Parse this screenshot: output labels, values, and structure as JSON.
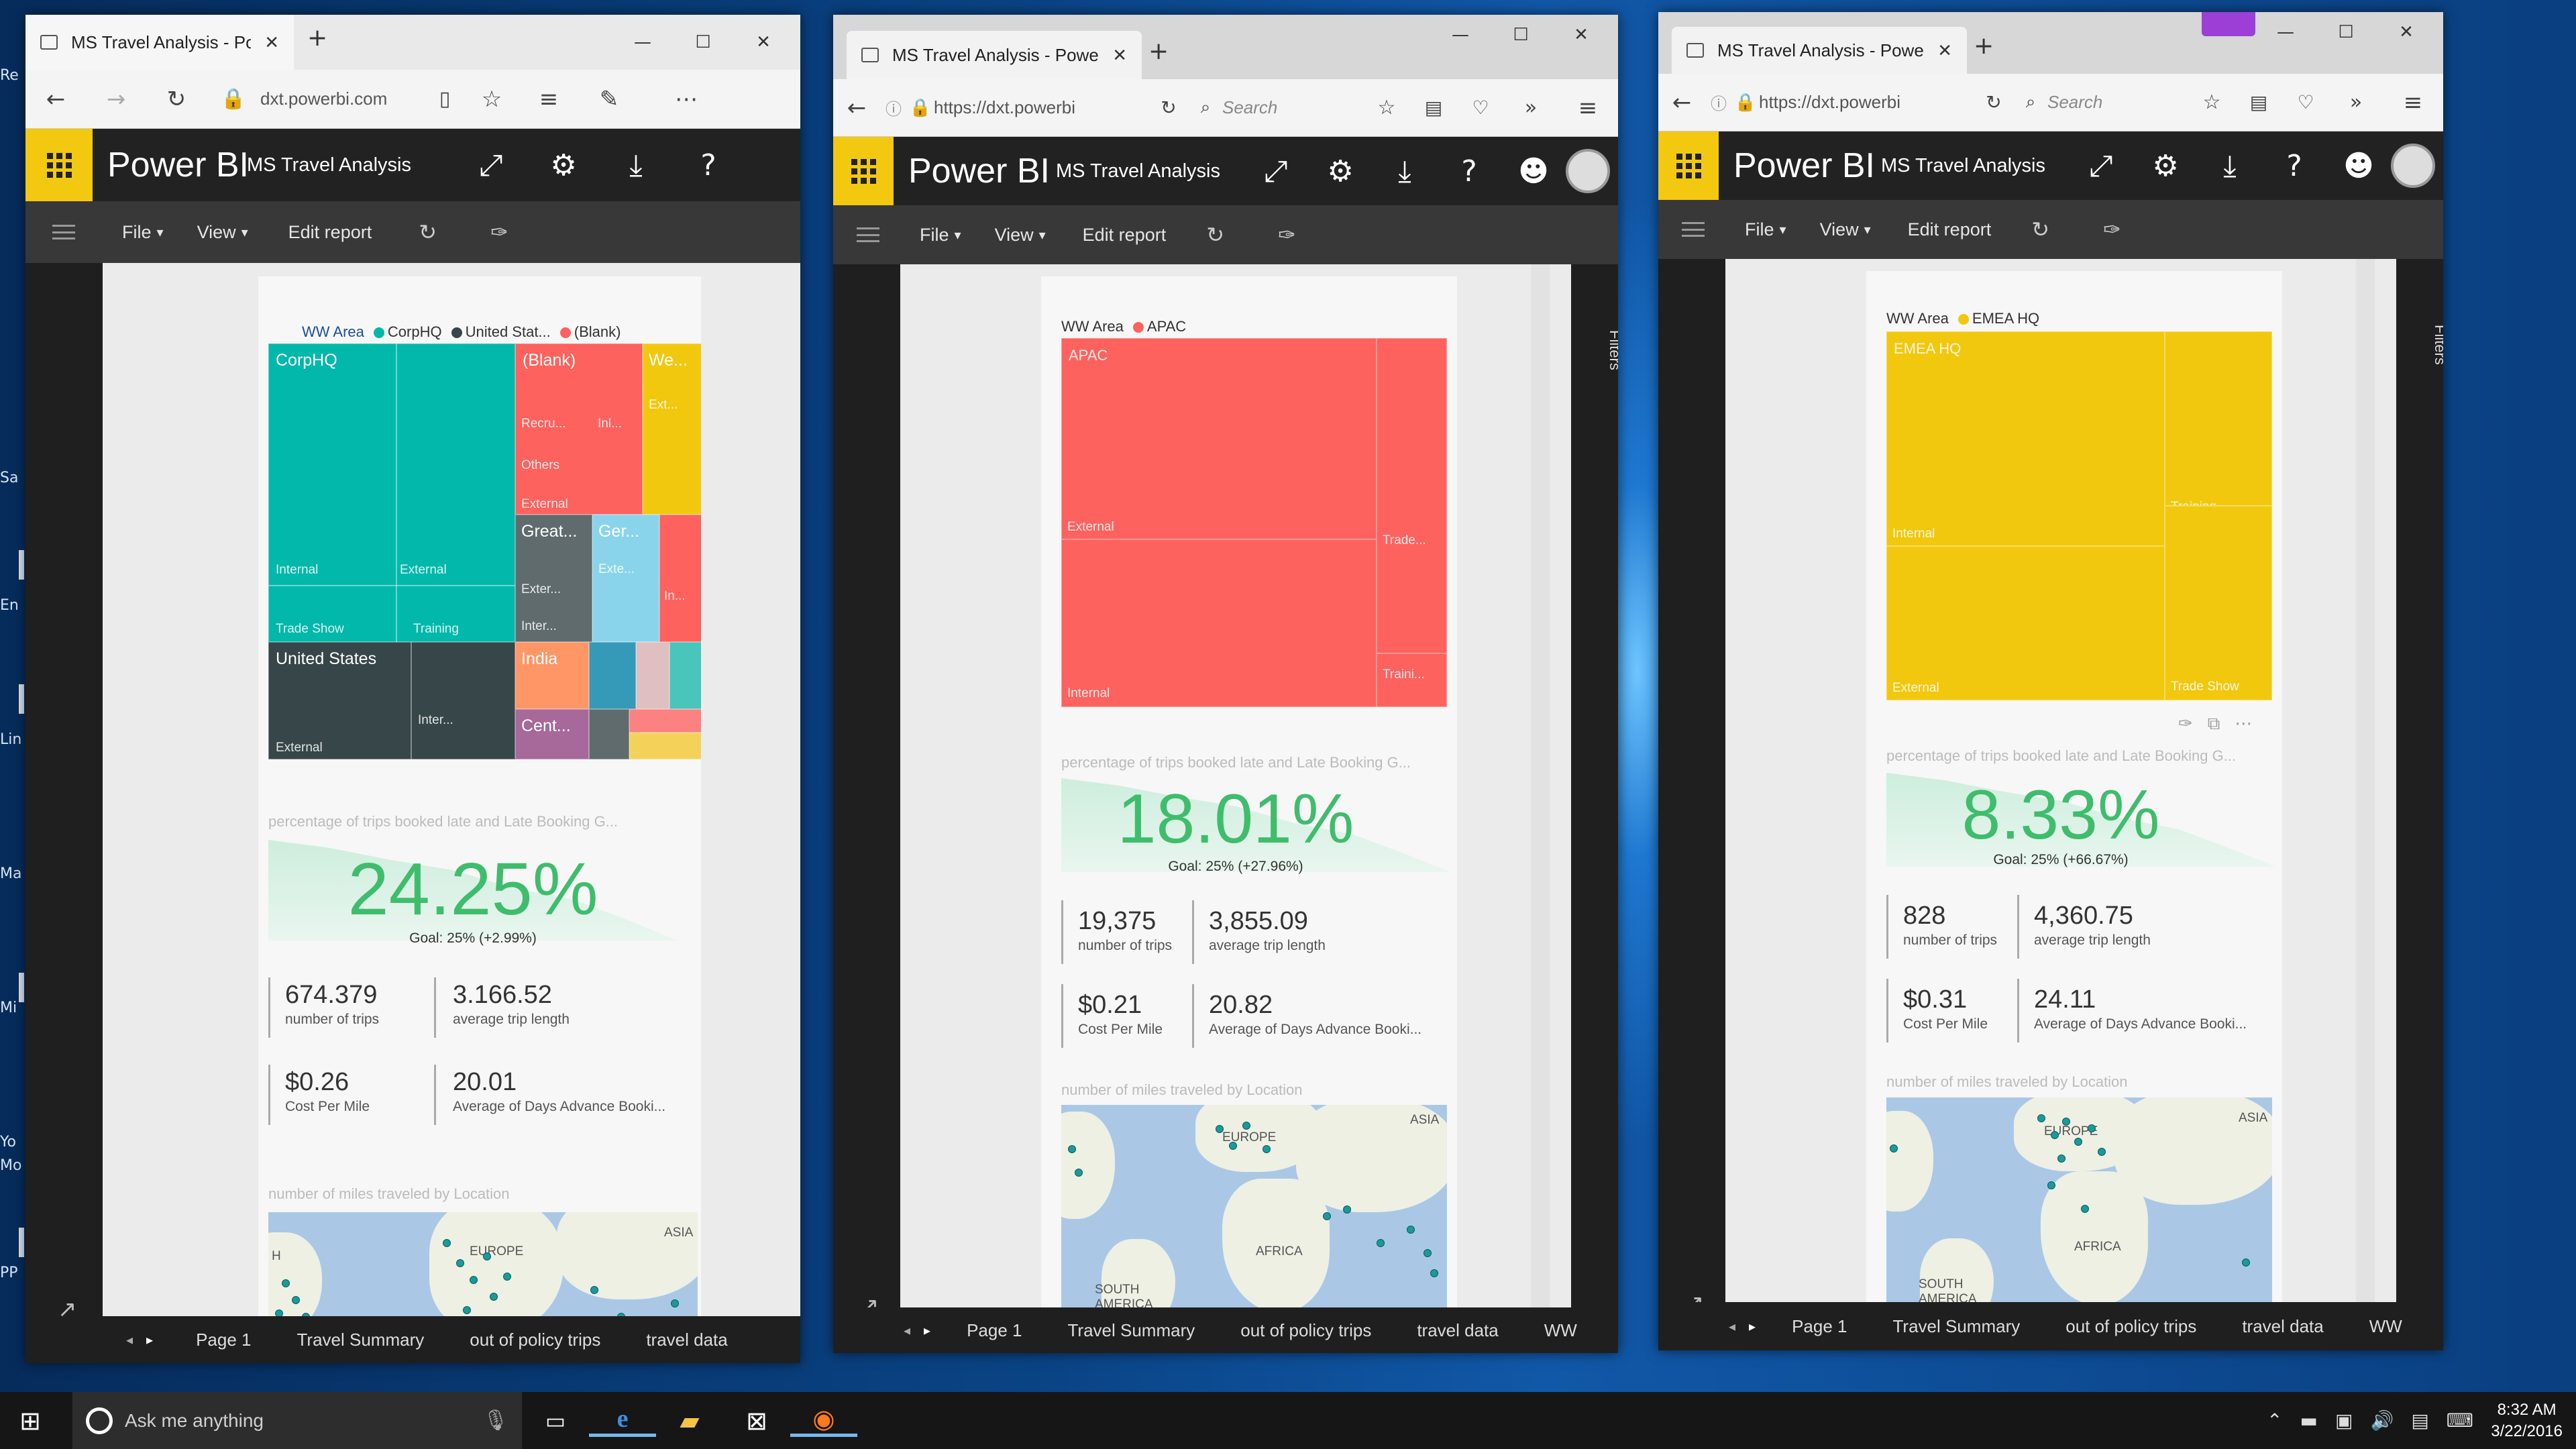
{
  "desktop": {
    "icons": [
      "Re",
      "Sa",
      "En",
      "Lin",
      "Ma",
      "Mi",
      "Yo",
      "Mo",
      "PP"
    ]
  },
  "windows": [
    {
      "browser": "edge",
      "tab_title": "MS Travel Analysis - Pov",
      "url": "dxt.powerbi.com",
      "brand": "Power BI",
      "report": "MS Travel Analysis",
      "menu": {
        "file": "File",
        "view": "View",
        "edit": "Edit report"
      },
      "treemap": {
        "legend_title": "WW Area",
        "legend": [
          {
            "name": "CorpHQ",
            "color": "#01b8aa"
          },
          {
            "name": "United Stat...",
            "color": "#374649"
          },
          {
            "name": "(Blank)",
            "color": "#fd625e"
          }
        ],
        "labels": {
          "corphq": "CorpHQ",
          "internal": "Internal",
          "external": "External",
          "tradeshow": "Trade Show",
          "training": "Training",
          "blank": "(Blank)",
          "recru": "Recru...",
          "inl": "Inl...",
          "others": "Others",
          "ext2": "External",
          "we": "We...",
          "ext3": "Ext...",
          "great": "Great...",
          "exter": "Exter...",
          "inter": "Inter...",
          "ger": "Ger...",
          "exte": "Exte...",
          "in": "In...",
          "us": "United States",
          "us_ext": "External",
          "us_int": "Inter...",
          "india": "India",
          "cent": "Cent..."
        }
      },
      "kpi": {
        "title": "percentage of trips booked late and Late Booking G...",
        "value": "24.25%",
        "goal": "Goal: 25% (+2.99%)"
      },
      "metrics": [
        {
          "value": "674.379",
          "label": "number of trips"
        },
        {
          "value": "3.166.52",
          "label": "average trip length"
        },
        {
          "value": "$0.26",
          "label": "Cost Per Mile"
        },
        {
          "value": "20.01",
          "label": "Average of Days Advance Booki..."
        }
      ],
      "map": {
        "title": "number of miles traveled by Location",
        "labels": [
          "ASIA",
          "EUROPE",
          "H"
        ]
      },
      "pages": [
        "Page 1",
        "Travel Summary",
        "out of policy trips",
        "travel data"
      ]
    },
    {
      "browser": "firefox",
      "tab_title": "MS Travel Analysis - Powe...",
      "url": "https://dxt.powerbi",
      "search": "Search",
      "brand": "Power BI",
      "report": "MS Travel Analysis",
      "menu": {
        "file": "File",
        "view": "View",
        "edit": "Edit report"
      },
      "treemap": {
        "legend_title": "WW Area",
        "legend": [
          {
            "name": "APAC",
            "color": "#fd625e"
          }
        ],
        "labels": {
          "main": "APAC",
          "external": "External",
          "trade": "Trade...",
          "internal": "Internal",
          "traini": "Traini..."
        }
      },
      "kpi": {
        "title": "percentage of trips booked late and Late Booking G...",
        "value": "18.01%",
        "goal": "Goal: 25% (+27.96%)"
      },
      "metrics": [
        {
          "value": "19,375",
          "label": "number of trips"
        },
        {
          "value": "3,855.09",
          "label": "average trip length"
        },
        {
          "value": "$0.21",
          "label": "Cost Per Mile"
        },
        {
          "value": "20.82",
          "label": "Average of Days Advance Booki..."
        }
      ],
      "map": {
        "title": "number of miles traveled by Location",
        "labels": [
          "ASIA",
          "EUROPE",
          "AFRICA",
          "SOUTH AMERICA"
        ]
      },
      "filters": "Filters",
      "pages": [
        "Page 1",
        "Travel Summary",
        "out of policy trips",
        "travel data",
        "WW"
      ]
    },
    {
      "browser": "firefox",
      "tab_title": "MS Travel Analysis - Powe...",
      "url": "https://dxt.powerbi",
      "search": "Search",
      "brand": "Power BI",
      "report": "MS Travel Analysis",
      "menu": {
        "file": "File",
        "view": "View",
        "edit": "Edit report"
      },
      "treemap": {
        "legend_title": "WW Area",
        "legend": [
          {
            "name": "EMEA HQ",
            "color": "#f2c80f"
          }
        ],
        "labels": {
          "main": "EMEA HQ",
          "training": "Training",
          "internal": "Internal",
          "external": "External",
          "tradeshow": "Trade Show"
        }
      },
      "kpi": {
        "title": "percentage of trips booked late and Late Booking G...",
        "value": "8.33%",
        "goal": "Goal: 25% (+66.67%)"
      },
      "metrics": [
        {
          "value": "828",
          "label": "number of trips"
        },
        {
          "value": "4,360.75",
          "label": "average trip length"
        },
        {
          "value": "$0.31",
          "label": "Cost Per Mile"
        },
        {
          "value": "24.11",
          "label": "Average of Days Advance Booki..."
        }
      ],
      "map": {
        "title": "number of miles traveled by Location",
        "labels": [
          "ASIA",
          "EUROPE",
          "AFRICA",
          "SOUTH AMERICA"
        ]
      },
      "filters": "Filters",
      "pages": [
        "Page 1",
        "Travel Summary",
        "out of policy trips",
        "travel data",
        "WW"
      ]
    }
  ],
  "taskbar": {
    "search": "Ask me anything",
    "time": "8:32 AM",
    "date": "3/22/2016"
  }
}
